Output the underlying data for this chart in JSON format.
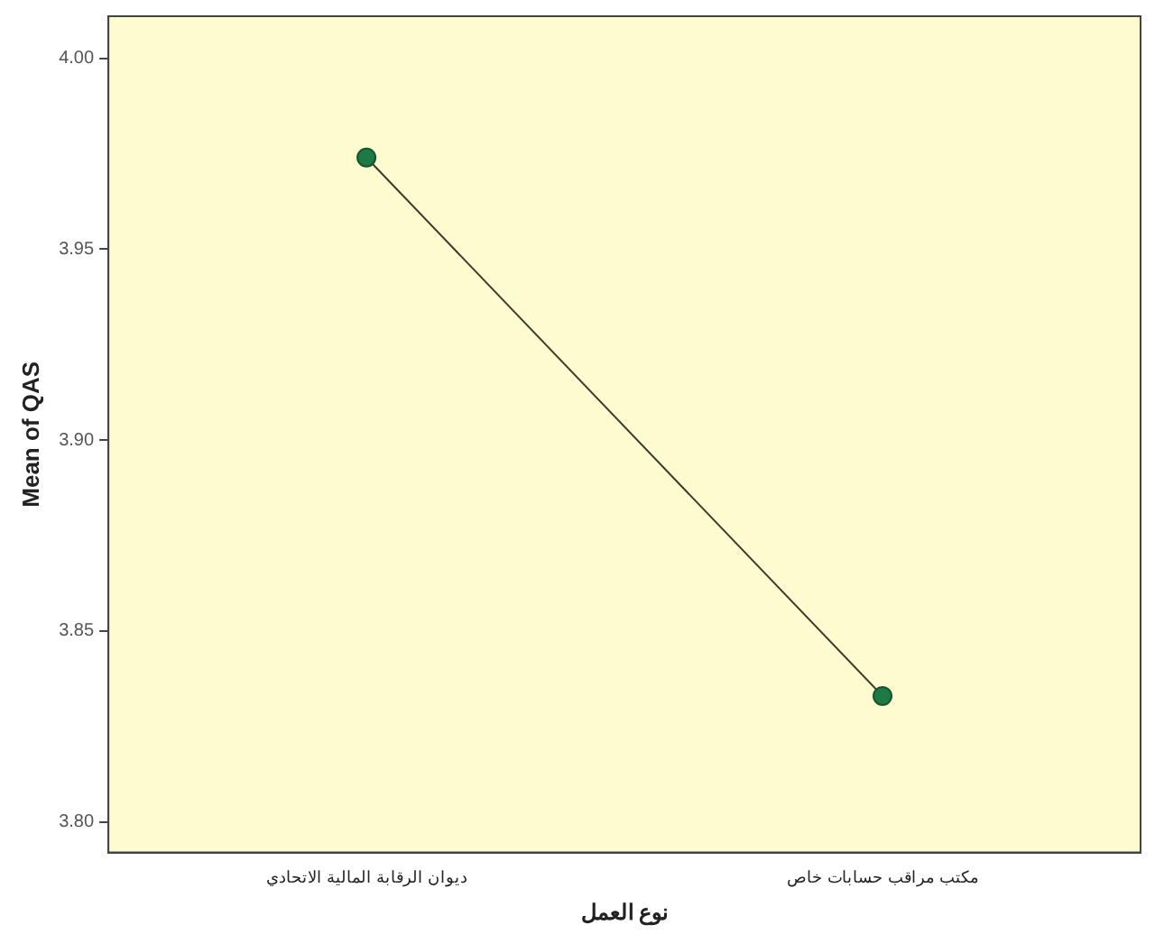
{
  "chart_data": {
    "type": "line",
    "xlabel": "نوع العمل",
    "ylabel": "Mean of QAS",
    "categories": [
      "ديوان الرقابة المالية الاتحادي",
      "مكتب مراقب حسابات خاص"
    ],
    "series": [
      {
        "color": "#1e7a45",
        "values": [
          3.974,
          3.833
        ]
      }
    ],
    "ylim": [
      3.792,
      4.011
    ],
    "yticks": [
      {
        "value": 3.8,
        "label": "3.80"
      },
      {
        "value": 3.85,
        "label": "3.85"
      },
      {
        "value": 3.9,
        "label": "3.90"
      },
      {
        "value": 3.95,
        "label": "3.95"
      },
      {
        "value": 4.0,
        "label": "4.00"
      }
    ],
    "grid": false,
    "legend": false,
    "marker": "circle",
    "line_style": "solid"
  }
}
